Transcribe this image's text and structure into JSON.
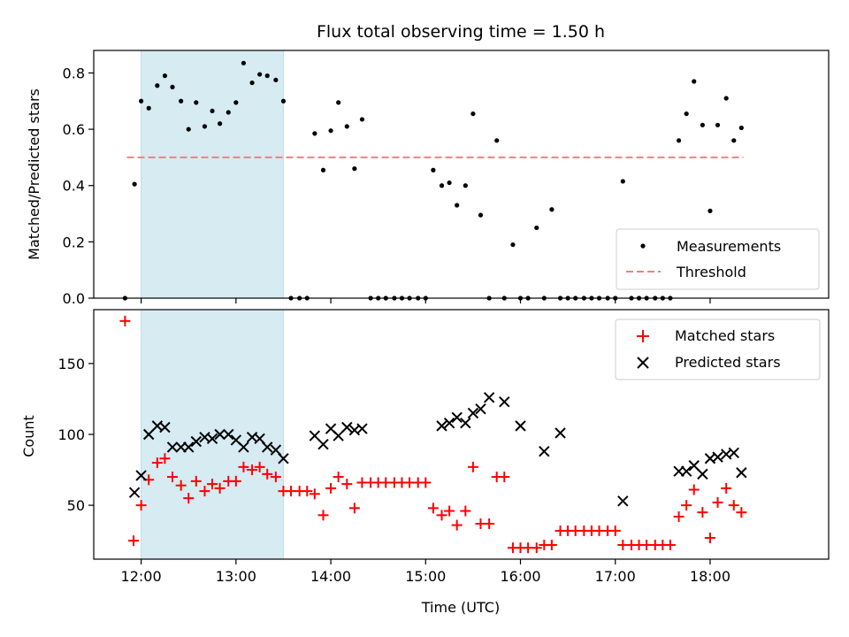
{
  "chart_data": [
    {
      "type": "scatter",
      "panel": "top",
      "title": "Flux total observing time = 1.50 h",
      "xlabel": "",
      "ylabel": "Matched/Predicted stars",
      "xlim_hours": [
        11.5,
        19.25
      ],
      "ylim": [
        0,
        0.88
      ],
      "yticks": [
        0.0,
        0.2,
        0.4,
        0.6,
        0.8
      ],
      "ytick_labels": [
        "0.0",
        "0.2",
        "0.4",
        "0.6",
        "0.8"
      ],
      "highlight_span_hours": [
        12.0,
        13.5
      ],
      "threshold": {
        "name": "Threshold",
        "value": 0.5,
        "x_range_hours": [
          11.85,
          18.35
        ],
        "color": "#f08080",
        "style": "dashed"
      },
      "legend_position": "lower right",
      "series": [
        {
          "name": "Measurements",
          "color": "#000000",
          "marker": "dot",
          "x": [
            11.83,
            11.93,
            12.0,
            12.08,
            12.17,
            12.25,
            12.33,
            12.42,
            12.5,
            12.58,
            12.67,
            12.75,
            12.83,
            12.92,
            13.0,
            13.08,
            13.17,
            13.25,
            13.33,
            13.42,
            13.5,
            13.58,
            13.67,
            13.75,
            13.83,
            13.92,
            14.0,
            14.08,
            14.17,
            14.25,
            14.33,
            14.42,
            14.5,
            14.58,
            14.67,
            14.75,
            14.83,
            14.92,
            15.0,
            15.08,
            15.17,
            15.25,
            15.33,
            15.42,
            15.5,
            15.58,
            15.67,
            15.75,
            15.83,
            15.92,
            16.0,
            16.08,
            16.17,
            16.25,
            16.33,
            16.42,
            16.5,
            16.58,
            16.67,
            16.75,
            16.83,
            16.92,
            17.0,
            17.08,
            17.17,
            17.25,
            17.33,
            17.42,
            17.5,
            17.58,
            17.67,
            17.75,
            17.83,
            17.92,
            18.0,
            18.08,
            18.17,
            18.25,
            18.33
          ],
          "y": [
            0.0,
            0.405,
            0.7,
            0.675,
            0.755,
            0.79,
            0.75,
            0.7,
            0.6,
            0.695,
            0.61,
            0.665,
            0.62,
            0.66,
            0.695,
            0.835,
            0.765,
            0.795,
            0.79,
            0.775,
            0.7,
            0.0,
            0.0,
            0.0,
            0.585,
            0.455,
            0.595,
            0.695,
            0.61,
            0.46,
            0.635,
            0.0,
            0.0,
            0.0,
            0.0,
            0.0,
            0.0,
            0.0,
            0.0,
            0.455,
            0.4,
            0.41,
            0.33,
            0.4,
            0.655,
            0.295,
            0.0,
            0.56,
            0.0,
            0.19,
            0.0,
            0.0,
            0.25,
            0.0,
            0.315,
            0.0,
            0.0,
            0.0,
            0.0,
            0.0,
            0.0,
            0.0,
            0.0,
            0.415,
            0.0,
            0.0,
            0.0,
            0.0,
            0.0,
            0.0,
            0.56,
            0.655,
            0.77,
            0.615,
            0.31,
            0.615,
            0.71,
            0.56,
            0.605
          ]
        }
      ]
    },
    {
      "type": "scatter",
      "panel": "bottom",
      "title": "",
      "xlabel": "Time (UTC)",
      "ylabel": "Count",
      "xlim_hours": [
        11.5,
        19.25
      ],
      "ylim": [
        12,
        188
      ],
      "yticks": [
        50,
        100,
        150
      ],
      "ytick_labels": [
        "50",
        "100",
        "150"
      ],
      "xticks_hours": [
        12,
        13,
        14,
        15,
        16,
        17,
        18
      ],
      "xtick_labels": [
        "12:00",
        "13:00",
        "14:00",
        "15:00",
        "16:00",
        "17:00",
        "18:00"
      ],
      "highlight_span_hours": [
        12.0,
        13.5
      ],
      "legend_position": "upper right",
      "series": [
        {
          "name": "Matched stars",
          "color": "#ff0000",
          "marker": "plus",
          "x": [
            11.83,
            11.92,
            12.0,
            12.08,
            12.17,
            12.25,
            12.33,
            12.42,
            12.5,
            12.58,
            12.67,
            12.75,
            12.83,
            12.92,
            13.0,
            13.08,
            13.17,
            13.25,
            13.33,
            13.42,
            13.5,
            13.58,
            13.67,
            13.75,
            13.83,
            13.92,
            14.0,
            14.08,
            14.17,
            14.25,
            14.33,
            14.42,
            14.5,
            14.58,
            14.67,
            14.75,
            14.83,
            14.92,
            15.0,
            15.08,
            15.17,
            15.25,
            15.33,
            15.42,
            15.5,
            15.58,
            15.67,
            15.75,
            15.83,
            15.92,
            16.0,
            16.08,
            16.17,
            16.25,
            16.33,
            16.42,
            16.5,
            16.58,
            16.67,
            16.75,
            16.83,
            16.92,
            17.0,
            17.08,
            17.17,
            17.25,
            17.33,
            17.42,
            17.5,
            17.58,
            17.67,
            17.75,
            17.83,
            17.92,
            18.0,
            18.08,
            18.17,
            18.25,
            18.33
          ],
          "y": [
            180,
            25,
            50,
            68,
            80,
            83,
            70,
            64,
            55,
            67,
            60,
            65,
            62,
            67,
            67,
            77,
            75,
            77,
            72,
            70,
            60,
            60,
            60,
            60,
            58,
            43,
            62,
            70,
            65,
            48,
            66,
            66,
            66,
            66,
            66,
            66,
            66,
            66,
            66,
            48,
            43,
            46,
            36,
            46,
            77,
            37,
            37,
            70,
            70,
            20,
            20,
            20,
            20,
            22,
            22,
            32,
            32,
            32,
            32,
            32,
            32,
            32,
            32,
            22,
            22,
            22,
            22,
            22,
            22,
            22,
            42,
            50,
            61,
            45,
            27,
            52,
            62,
            50,
            45
          ]
        },
        {
          "name": "Predicted stars",
          "color": "#000000",
          "marker": "x",
          "x": [
            11.93,
            12.0,
            12.08,
            12.17,
            12.25,
            12.33,
            12.42,
            12.5,
            12.58,
            12.67,
            12.75,
            12.83,
            12.92,
            13.0,
            13.08,
            13.17,
            13.25,
            13.33,
            13.42,
            13.5,
            13.83,
            13.92,
            14.0,
            14.08,
            14.17,
            14.25,
            14.33,
            15.17,
            15.25,
            15.33,
            15.42,
            15.5,
            15.58,
            15.67,
            15.83,
            16.0,
            16.25,
            16.42,
            17.08,
            17.67,
            17.75,
            17.83,
            17.92,
            18.0,
            18.08,
            18.17,
            18.25,
            18.33
          ],
          "y": [
            59,
            71,
            100,
            106,
            105,
            91,
            91,
            91,
            95,
            98,
            97,
            100,
            100,
            96,
            91,
            98,
            97,
            91,
            89,
            83,
            99,
            93,
            104,
            99,
            105,
            103,
            104,
            106,
            108,
            112,
            108,
            115,
            118,
            126,
            123,
            106,
            88,
            101,
            53,
            74,
            74,
            78,
            72,
            83,
            84,
            86,
            87,
            73
          ]
        }
      ]
    }
  ]
}
